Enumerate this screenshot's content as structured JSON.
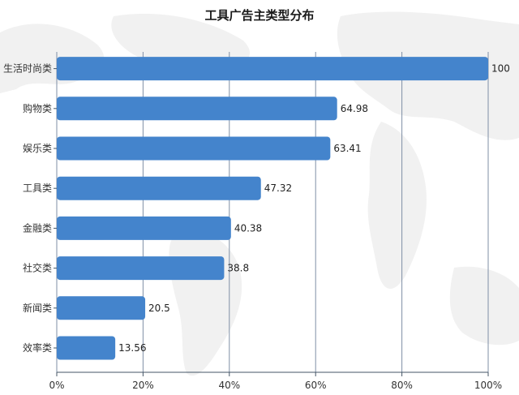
{
  "chart_data": {
    "type": "bar",
    "orientation": "horizontal",
    "title": "工具广告主类型分布",
    "categories": [
      "生活时尚类",
      "购物类",
      "娱乐类",
      "工具类",
      "金融类",
      "社交类",
      "新闻类",
      "效率类"
    ],
    "values": [
      100,
      64.98,
      63.41,
      47.32,
      40.38,
      38.8,
      20.5,
      13.56
    ],
    "value_labels": [
      "100",
      "64.98",
      "63.41",
      "47.32",
      "40.38",
      "38.8",
      "20.5",
      "13.56"
    ],
    "xlim": [
      0,
      100
    ],
    "x_ticks": [
      0,
      20,
      40,
      60,
      80,
      100
    ],
    "x_tick_labels": [
      "0%",
      "20%",
      "40%",
      "60%",
      "80%",
      "100%"
    ],
    "xlabel": "",
    "ylabel": "",
    "grid": true,
    "bar_color": "#4484cc",
    "background": "world-map"
  }
}
